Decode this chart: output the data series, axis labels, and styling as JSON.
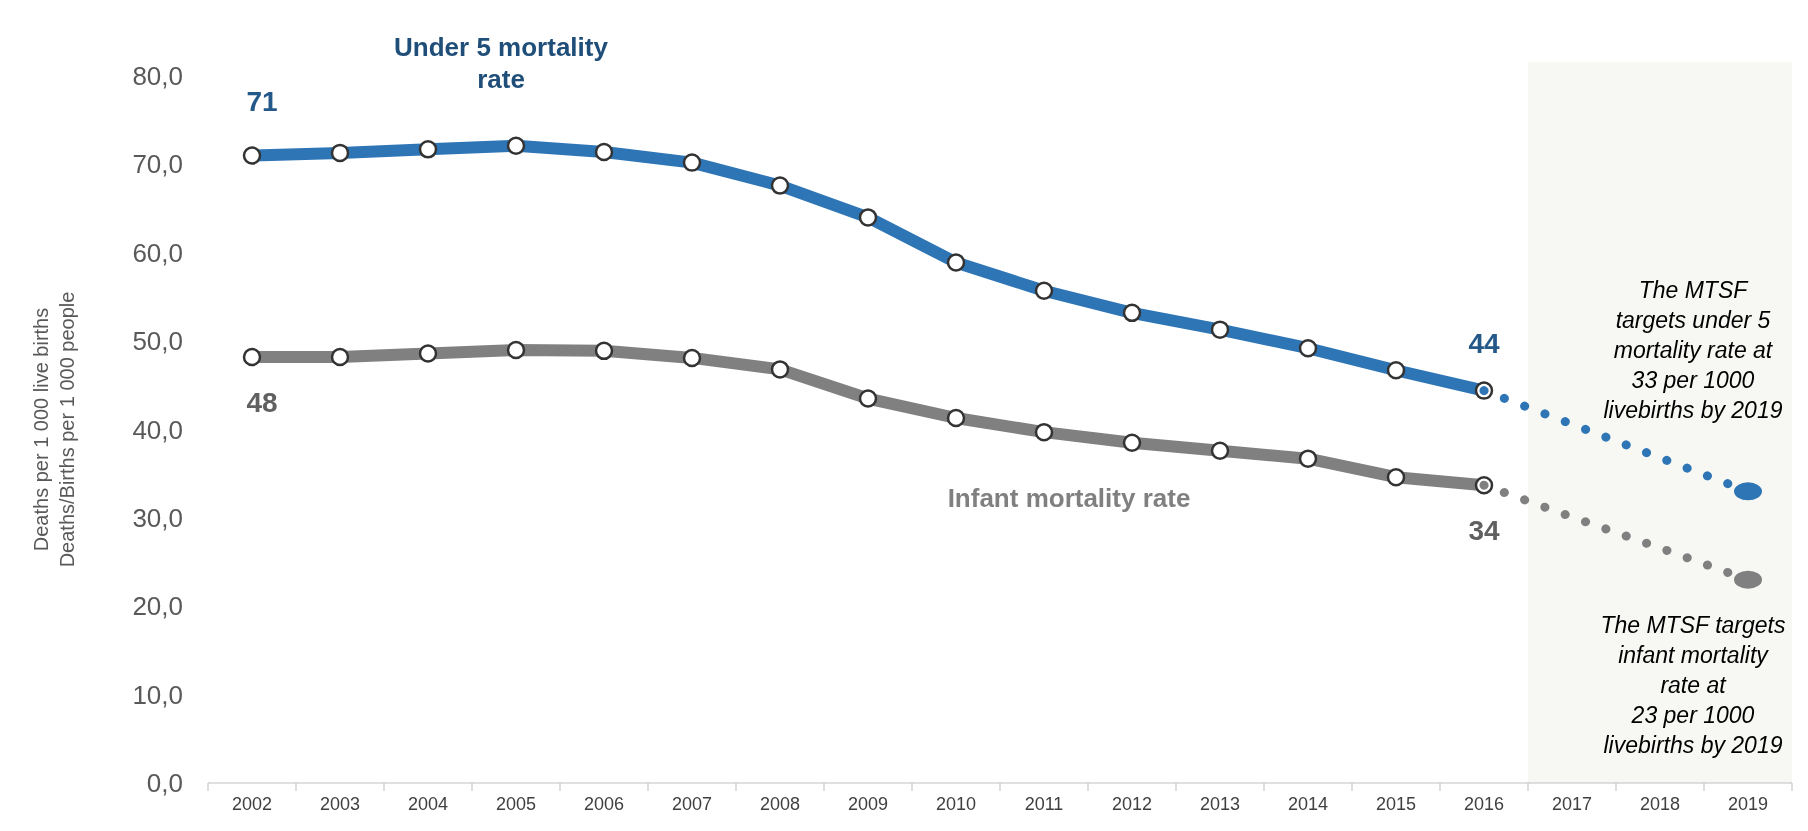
{
  "chart_data": {
    "type": "line",
    "ylabel": "Deaths per 1 000 live births\nDeaths/Births per 1 000 people",
    "categories": [
      "2002",
      "2003",
      "2004",
      "2005",
      "2006",
      "2007",
      "2008",
      "2009",
      "2010",
      "2011",
      "2012",
      "2013",
      "2014",
      "2015",
      "2016",
      "2017",
      "2018",
      "2019"
    ],
    "ylim": [
      0,
      80
    ],
    "yticks": [
      {
        "value": 0,
        "label": "0,0"
      },
      {
        "value": 10,
        "label": "10,0"
      },
      {
        "value": 20,
        "label": "20,0"
      },
      {
        "value": 30,
        "label": "30,0"
      },
      {
        "value": 40,
        "label": "40,0"
      },
      {
        "value": 50,
        "label": "50,0"
      },
      {
        "value": 60,
        "label": "60,0"
      },
      {
        "value": 70,
        "label": "70,0"
      },
      {
        "value": 80,
        "label": "80,0"
      }
    ],
    "series": [
      {
        "name": "Under 5 mortality rate",
        "color": "#2e75b6",
        "marker": "circle",
        "line_style": "solid",
        "values": [
          71.0,
          71.3,
          71.7,
          72.1,
          71.4,
          70.2,
          67.6,
          64.0,
          58.9,
          55.7,
          53.2,
          51.3,
          49.2,
          46.7,
          44.4,
          null,
          null,
          null
        ],
        "value_labels": [
          "71",
          null,
          null,
          null,
          null,
          null,
          null,
          null,
          null,
          null,
          null,
          null,
          null,
          null,
          "44",
          null,
          null,
          null
        ]
      },
      {
        "name": "Infant mortality rate",
        "color": "#808080",
        "marker": "circle",
        "line_style": "solid",
        "values": [
          48.2,
          48.2,
          48.6,
          49.0,
          48.9,
          48.1,
          46.8,
          43.5,
          41.3,
          39.7,
          38.5,
          37.6,
          36.7,
          34.6,
          33.7,
          null,
          null,
          null
        ],
        "value_labels": [
          "48",
          null,
          null,
          null,
          null,
          null,
          null,
          null,
          null,
          null,
          null,
          null,
          null,
          null,
          "34",
          null,
          null,
          null
        ]
      },
      {
        "color": "#2e75b6",
        "marker": "none",
        "line_style": "dotted",
        "values": [
          null,
          null,
          null,
          null,
          null,
          null,
          null,
          null,
          null,
          null,
          null,
          null,
          null,
          null,
          44.4,
          40.6,
          36.8,
          33
        ]
      },
      {
        "color": "#808080",
        "marker": "none",
        "line_style": "dotted",
        "values": [
          null,
          null,
          null,
          null,
          null,
          null,
          null,
          null,
          null,
          null,
          null,
          null,
          null,
          null,
          33.7,
          30.1,
          26.6,
          23
        ]
      }
    ],
    "bands": [
      {
        "axis": "x",
        "from": "2017",
        "to": "2019",
        "color": "#f7f7f3"
      }
    ],
    "annotations": [
      "The MTSF\ntargets under 5\nmortality rate at\n33 per 1000\nlivebirths by 2019",
      "The MTSF targets\ninfant mortality\nrate at\n23 per 1000\nlivebirths by 2019"
    ],
    "grid": false,
    "legend": false
  }
}
